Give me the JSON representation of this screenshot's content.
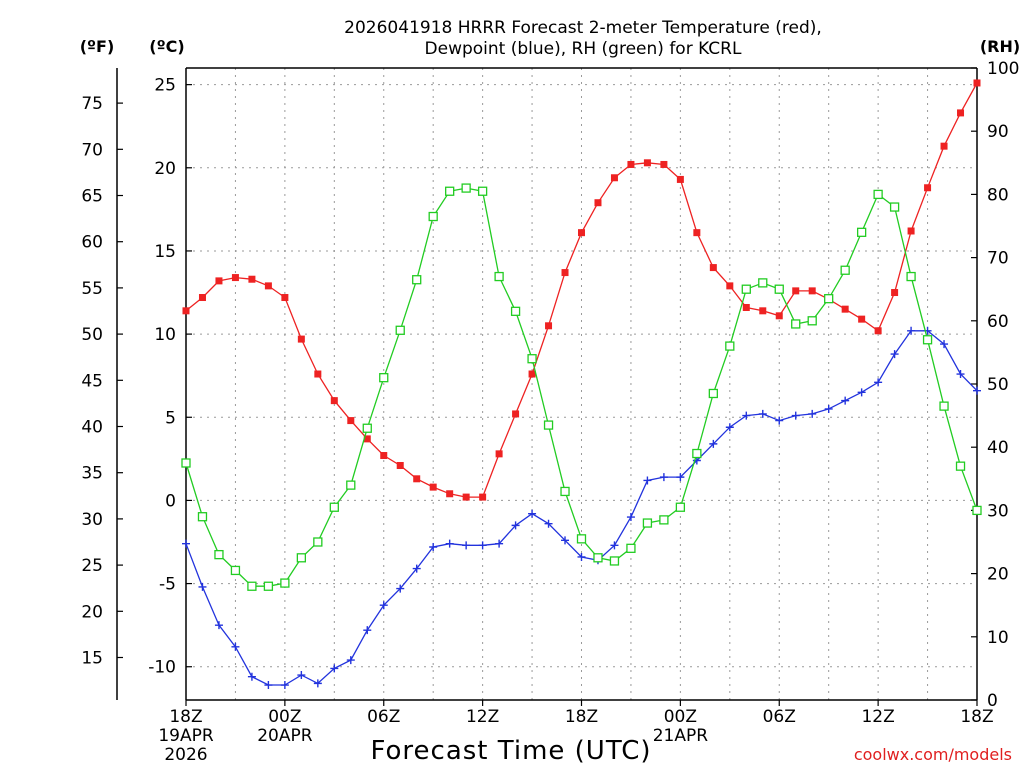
{
  "chart_data": {
    "type": "line",
    "title": [
      "2026041918 HRRR Forecast 2-meter Temperature (red),",
      "Dewpoint (blue), RH (green) for KCRL"
    ],
    "xlabel": "Forecast Time (UTC)",
    "credit": "coolwx.com/models",
    "x_ticks": [
      {
        "hour": 0,
        "lines": [
          "18Z",
          "19APR",
          "2026"
        ]
      },
      {
        "hour": 6,
        "lines": [
          "00Z",
          "20APR"
        ]
      },
      {
        "hour": 12,
        "lines": [
          "06Z"
        ]
      },
      {
        "hour": 18,
        "lines": [
          "12Z"
        ]
      },
      {
        "hour": 24,
        "lines": [
          "18Z"
        ]
      },
      {
        "hour": 30,
        "lines": [
          "00Z",
          "21APR"
        ]
      },
      {
        "hour": 36,
        "lines": [
          "06Z"
        ]
      },
      {
        "hour": 42,
        "lines": [
          "12Z"
        ]
      },
      {
        "hour": 48,
        "lines": [
          "18Z"
        ]
      }
    ],
    "xlim": [
      0,
      48
    ],
    "axes": {
      "fahrenheit": {
        "label": "(ºF)",
        "ticks": [
          15,
          20,
          25,
          30,
          35,
          40,
          45,
          50,
          55,
          60,
          65,
          70,
          75
        ]
      },
      "celsius": {
        "label": "(ºC)",
        "ylim": [
          -12,
          26
        ],
        "ticks": [
          -10,
          -5,
          0,
          5,
          10,
          15,
          20,
          25
        ]
      },
      "rh": {
        "label": "(RH)",
        "ylim": [
          0,
          100
        ],
        "ticks": [
          0,
          10,
          20,
          30,
          40,
          50,
          60,
          70,
          80,
          90,
          100
        ]
      }
    },
    "grid": true,
    "series": [
      {
        "name": "2-meter Temperature",
        "axis": "celsius",
        "color": "#ee2222",
        "marker": "filled-square",
        "values": [
          11.4,
          12.2,
          13.2,
          13.4,
          13.3,
          12.9,
          12.2,
          9.7,
          7.6,
          6.0,
          4.8,
          3.7,
          2.7,
          2.1,
          1.3,
          0.8,
          0.4,
          0.2,
          0.2,
          2.8,
          5.2,
          7.6,
          10.5,
          13.7,
          16.1,
          17.9,
          19.4,
          20.2,
          20.3,
          20.2,
          19.3,
          16.1,
          14.0,
          12.9,
          11.6,
          11.4,
          11.1,
          12.6,
          12.6,
          12.1,
          11.5,
          10.9,
          10.2,
          12.5,
          16.2,
          18.8,
          21.3,
          23.3,
          25.1
        ]
      },
      {
        "name": "Dewpoint",
        "axis": "celsius",
        "color": "#2233dd",
        "marker": "plus",
        "values": [
          -2.6,
          -5.2,
          -7.5,
          -8.8,
          -10.6,
          -11.1,
          -11.1,
          -10.5,
          -11.0,
          -10.1,
          -9.6,
          -7.8,
          -6.3,
          -5.3,
          -4.1,
          -2.8,
          -2.6,
          -2.7,
          -2.7,
          -2.6,
          -1.5,
          -0.8,
          -1.4,
          -2.4,
          -3.4,
          -3.6,
          -2.7,
          -1.0,
          1.2,
          1.4,
          1.4,
          2.4,
          3.4,
          4.4,
          5.1,
          5.2,
          4.8,
          5.1,
          5.2,
          5.5,
          6.0,
          6.5,
          7.1,
          8.8,
          10.2,
          10.2,
          9.4,
          7.6,
          6.6
        ]
      },
      {
        "name": "RH",
        "axis": "rh",
        "color": "#22cc22",
        "marker": "open-square",
        "values": [
          37.5,
          29,
          23,
          20.5,
          18,
          18,
          18.5,
          22.5,
          25,
          30.5,
          34,
          43,
          51,
          58.5,
          66.5,
          76.5,
          80.5,
          81,
          80.5,
          67,
          61.5,
          54,
          43.5,
          33,
          25.5,
          22.5,
          22,
          24,
          28,
          28.5,
          30.5,
          39,
          48.5,
          56,
          65,
          66,
          65,
          59.5,
          60,
          63.5,
          68,
          74,
          80,
          78,
          67,
          57,
          46.5,
          37,
          30
        ]
      }
    ]
  }
}
